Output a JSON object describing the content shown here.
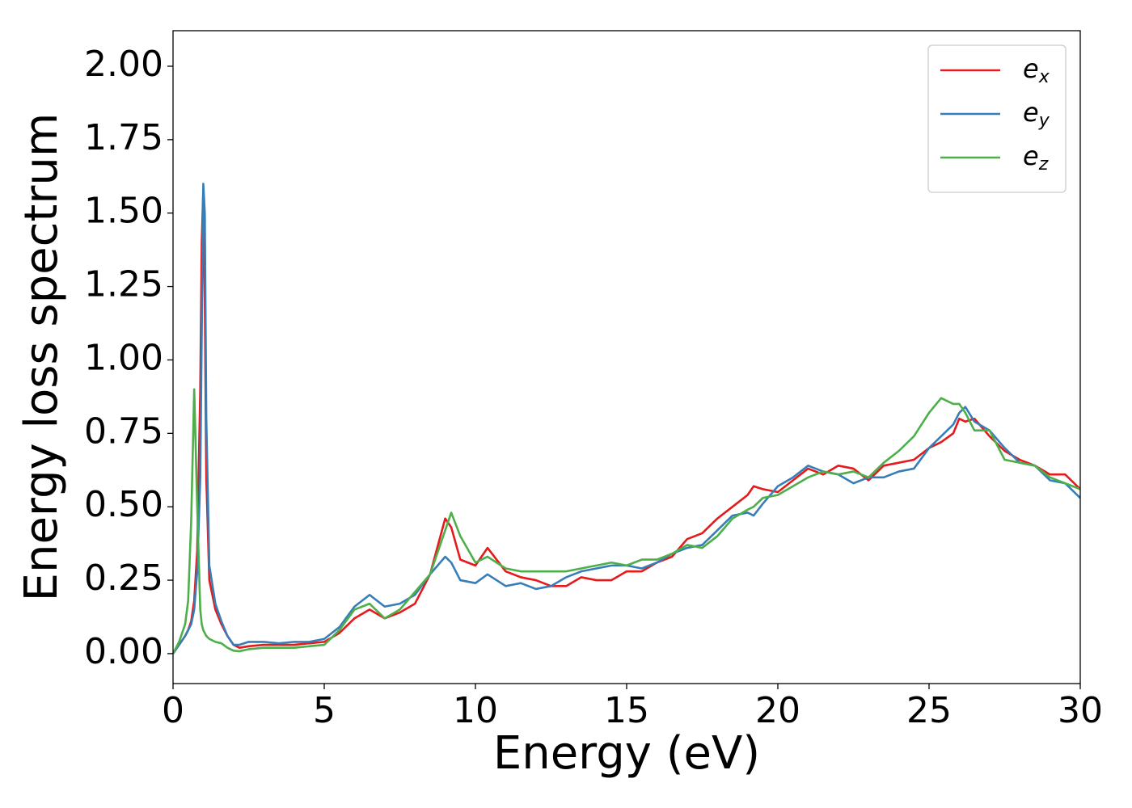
{
  "chart_data": {
    "type": "line",
    "x_label": "Energy (eV)",
    "y_label": "Energy loss spectrum",
    "xlim": [
      0,
      30
    ],
    "ylim": [
      -0.102,
      2.121
    ],
    "xticks": [
      0,
      5,
      10,
      15,
      20,
      25,
      30
    ],
    "yticks": [
      {
        "value": 0,
        "label": "0.00"
      },
      {
        "value": 0.25,
        "label": "0.25"
      },
      {
        "value": 0.5,
        "label": "0.50"
      },
      {
        "value": 0.75,
        "label": "0.75"
      },
      {
        "value": 1,
        "label": "1.00"
      },
      {
        "value": 1.25,
        "label": "1.25"
      },
      {
        "value": 1.5,
        "label": "1.50"
      },
      {
        "value": 1.75,
        "label": "1.75"
      },
      {
        "value": 2,
        "label": "2.00"
      }
    ],
    "grid": false,
    "legend": "upper right",
    "x": [
      0,
      0.2,
      0.4,
      0.5,
      0.6,
      0.7,
      0.8,
      0.9,
      0.95,
      1.0,
      1.05,
      1.1,
      1.2,
      1.4,
      1.6,
      1.8,
      2.0,
      2.2,
      2.5,
      3,
      3.5,
      4,
      4.5,
      5,
      5.5,
      6,
      6.5,
      7,
      7.5,
      8,
      8.5,
      9,
      9.2,
      9.5,
      10,
      10.4,
      11,
      11.5,
      12,
      12.5,
      13,
      13.5,
      14,
      14.5,
      15,
      15.5,
      16,
      16.5,
      17,
      17.5,
      18,
      18.5,
      19,
      19.2,
      19.5,
      20,
      20.5,
      21,
      21.5,
      22,
      22.5,
      23,
      23.5,
      24,
      24.5,
      25,
      25.4,
      25.8,
      26,
      26.2,
      26.5,
      27,
      27.5,
      28,
      28.5,
      29,
      29.5,
      30
    ],
    "series": [
      {
        "name": "ex",
        "color": "#e41a1c",
        "values": [
          0,
          0.03,
          0.06,
          0.08,
          0.11,
          0.18,
          0.35,
          0.9,
          1.4,
          1.58,
          1.2,
          0.6,
          0.25,
          0.15,
          0.1,
          0.06,
          0.03,
          0.02,
          0.025,
          0.03,
          0.03,
          0.03,
          0.035,
          0.04,
          0.07,
          0.12,
          0.15,
          0.12,
          0.14,
          0.17,
          0.27,
          0.46,
          0.43,
          0.32,
          0.3,
          0.36,
          0.28,
          0.26,
          0.25,
          0.23,
          0.23,
          0.26,
          0.25,
          0.25,
          0.28,
          0.28,
          0.31,
          0.33,
          0.39,
          0.41,
          0.46,
          0.5,
          0.54,
          0.57,
          0.56,
          0.55,
          0.59,
          0.63,
          0.61,
          0.64,
          0.63,
          0.59,
          0.64,
          0.65,
          0.66,
          0.7,
          0.72,
          0.75,
          0.8,
          0.79,
          0.8,
          0.74,
          0.69,
          0.66,
          0.64,
          0.61,
          0.61,
          0.56
        ]
      },
      {
        "name": "ey",
        "color": "#377eb8",
        "values": [
          0,
          0.03,
          0.06,
          0.08,
          0.1,
          0.15,
          0.28,
          0.6,
          1.1,
          1.6,
          1.5,
          0.8,
          0.3,
          0.17,
          0.11,
          0.06,
          0.03,
          0.03,
          0.04,
          0.04,
          0.035,
          0.04,
          0.04,
          0.05,
          0.09,
          0.16,
          0.2,
          0.16,
          0.17,
          0.2,
          0.27,
          0.33,
          0.31,
          0.25,
          0.24,
          0.27,
          0.23,
          0.24,
          0.22,
          0.23,
          0.26,
          0.28,
          0.29,
          0.3,
          0.3,
          0.29,
          0.31,
          0.34,
          0.36,
          0.37,
          0.42,
          0.47,
          0.48,
          0.47,
          0.51,
          0.57,
          0.6,
          0.64,
          0.62,
          0.61,
          0.58,
          0.6,
          0.6,
          0.62,
          0.63,
          0.7,
          0.74,
          0.78,
          0.82,
          0.84,
          0.79,
          0.76,
          0.7,
          0.65,
          0.64,
          0.59,
          0.58,
          0.53
        ]
      },
      {
        "name": "ez",
        "color": "#4daf4a",
        "values": [
          0,
          0.04,
          0.1,
          0.18,
          0.45,
          0.9,
          0.5,
          0.15,
          0.1,
          0.08,
          0.07,
          0.06,
          0.05,
          0.04,
          0.035,
          0.02,
          0.01,
          0.008,
          0.015,
          0.02,
          0.02,
          0.02,
          0.025,
          0.03,
          0.08,
          0.15,
          0.17,
          0.12,
          0.15,
          0.21,
          0.27,
          0.42,
          0.48,
          0.4,
          0.31,
          0.33,
          0.29,
          0.28,
          0.28,
          0.28,
          0.28,
          0.29,
          0.3,
          0.31,
          0.3,
          0.32,
          0.32,
          0.34,
          0.37,
          0.36,
          0.4,
          0.46,
          0.49,
          0.5,
          0.53,
          0.54,
          0.57,
          0.6,
          0.62,
          0.61,
          0.62,
          0.6,
          0.65,
          0.69,
          0.74,
          0.82,
          0.87,
          0.85,
          0.85,
          0.82,
          0.76,
          0.76,
          0.66,
          0.65,
          0.64,
          0.6,
          0.58,
          0.56
        ]
      }
    ]
  }
}
